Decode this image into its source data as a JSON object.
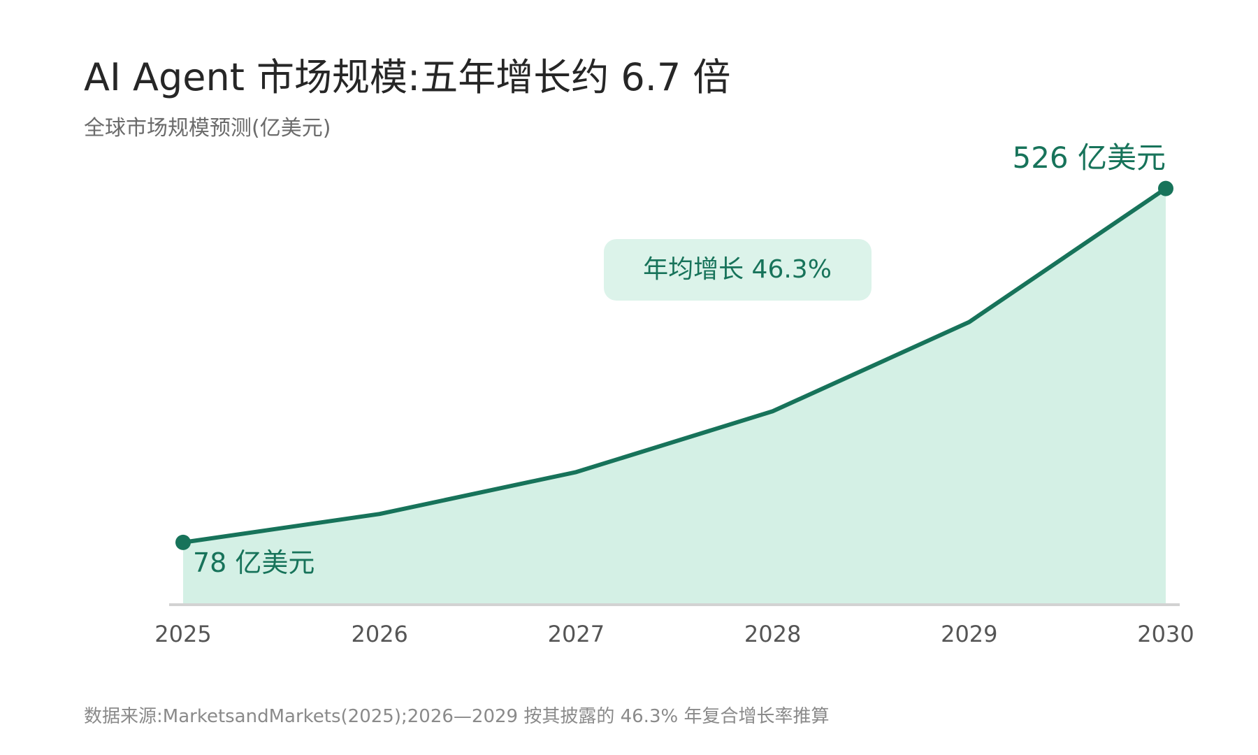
{
  "header": {
    "title": "AI Agent 市场规模:五年增长约 6.7 倍",
    "subtitle": "全球市场规模预测(亿美元)"
  },
  "footer": {
    "source": "数据来源:MarketsandMarkets(2025);2026—2029 按其披露的 46.3% 年复合增长率推算"
  },
  "annotations": {
    "cagr_label": "年均增长 46.3%",
    "start_label": "78 亿美元",
    "end_label": "526 亿美元"
  },
  "colors": {
    "line": "#17735a",
    "area": "#d4f0e5",
    "badge_bg": "#dcf3ea",
    "axis": "#d2d2d2",
    "tick_text": "#555555"
  },
  "chart_data": {
    "type": "area",
    "x": [
      "2025",
      "2026",
      "2027",
      "2028",
      "2029",
      "2030"
    ],
    "series": [
      {
        "values": [
          78,
          114,
          167,
          244,
          357,
          526
        ]
      }
    ],
    "ylim": [
      0,
      600
    ],
    "grid": false,
    "legend": "none"
  }
}
